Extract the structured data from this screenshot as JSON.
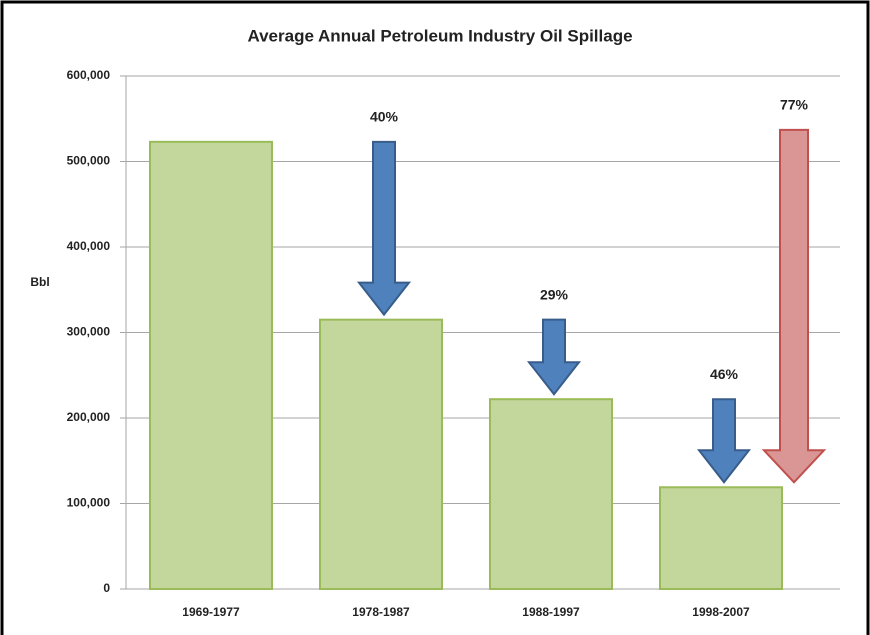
{
  "chart_data": {
    "type": "bar",
    "title": "Average Annual Petroleum Industry Oil Spillage",
    "y_label": "Bbl",
    "categories": [
      "1969-1977",
      "1978-1987",
      "1988-1997",
      "1998-2007"
    ],
    "values": [
      523000,
      315000,
      222000,
      119000
    ],
    "color": "#c3d69b",
    "ylim": [
      0,
      600000
    ],
    "yticks": [
      0,
      {
        "value": 100000,
        "label": "100,000"
      },
      {
        "value": 200000,
        "label": "200,000"
      },
      {
        "value": 300000,
        "label": "300,000"
      },
      {
        "value": 400000,
        "label": "400,000"
      },
      {
        "value": 500000,
        "label": "500,000"
      },
      {
        "value": 600000,
        "label": "600,000"
      }
    ],
    "grid": true,
    "annotations": [
      "40%",
      "29%",
      "46%",
      "77%"
    ]
  }
}
